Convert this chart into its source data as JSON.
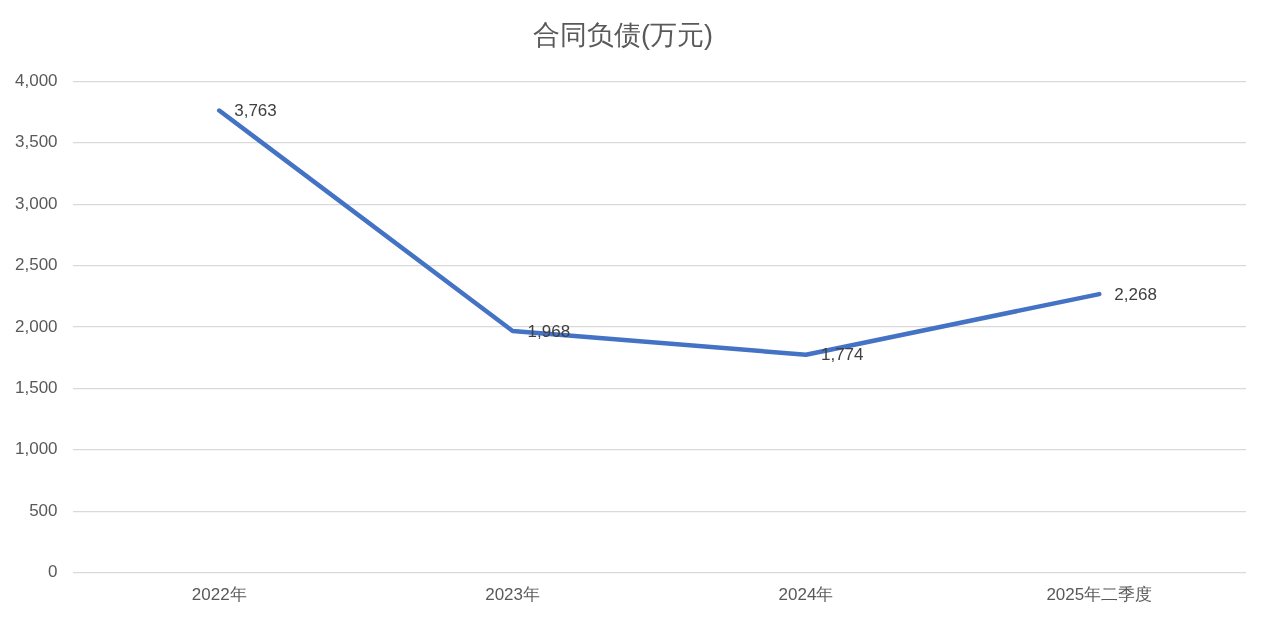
{
  "chart_data": {
    "type": "line",
    "title": "合同负债(万元)",
    "categories": [
      "2022年",
      "2023年",
      "2024年",
      "2025年二季度"
    ],
    "series": [
      {
        "color": "#4472c4",
        "values": [
          3763,
          1968,
          1774,
          2268
        ],
        "value_labels": [
          "3,763",
          "1,968",
          "1,774",
          "2,268"
        ]
      }
    ],
    "ylim": [
      0,
      4000
    ],
    "yticks": [
      0,
      500,
      {
        "value": 1000,
        "label": "1,000"
      },
      {
        "value": 1500,
        "label": "1,500"
      },
      {
        "value": 2000,
        "label": "2,000"
      },
      {
        "value": 2500,
        "label": "2,500"
      },
      {
        "value": 3000,
        "label": "3,000"
      },
      {
        "value": 3500,
        "label": "3,500"
      },
      {
        "value": 4000,
        "label": "4,000"
      }
    ],
    "grid": "y"
  }
}
